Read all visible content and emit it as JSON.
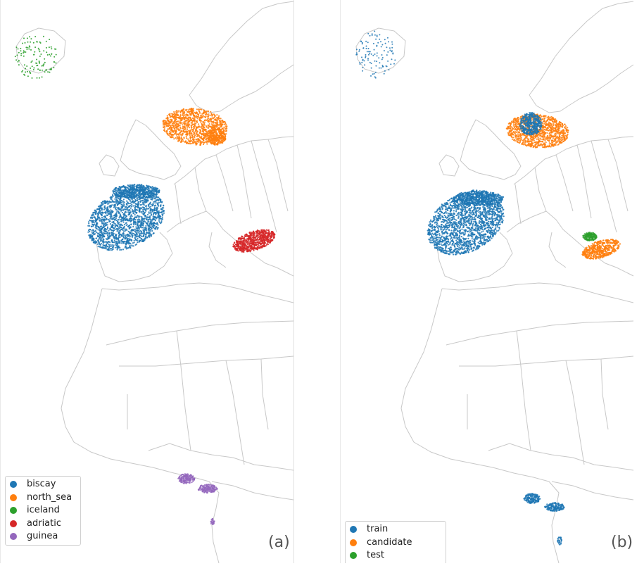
{
  "panels": [
    {
      "id": "a",
      "label": "(a)",
      "legend": [
        {
          "name": "biscay",
          "color": "#1f77b4"
        },
        {
          "name": "north_sea",
          "color": "#ff7f0e"
        },
        {
          "name": "iceland",
          "color": "#2ca02c"
        },
        {
          "name": "adriatic",
          "color": "#d62728"
        },
        {
          "name": "guinea",
          "color": "#9467bd"
        }
      ]
    },
    {
      "id": "b",
      "label": "(b)",
      "legend": [
        {
          "name": "train",
          "color": "#1f77b4"
        },
        {
          "name": "candidate",
          "color": "#ff7f0e"
        },
        {
          "name": "test",
          "color": "#2ca02c"
        }
      ]
    }
  ],
  "colors": {
    "land_border": "#c8c8c8",
    "coast": "#cfcfcf"
  }
}
